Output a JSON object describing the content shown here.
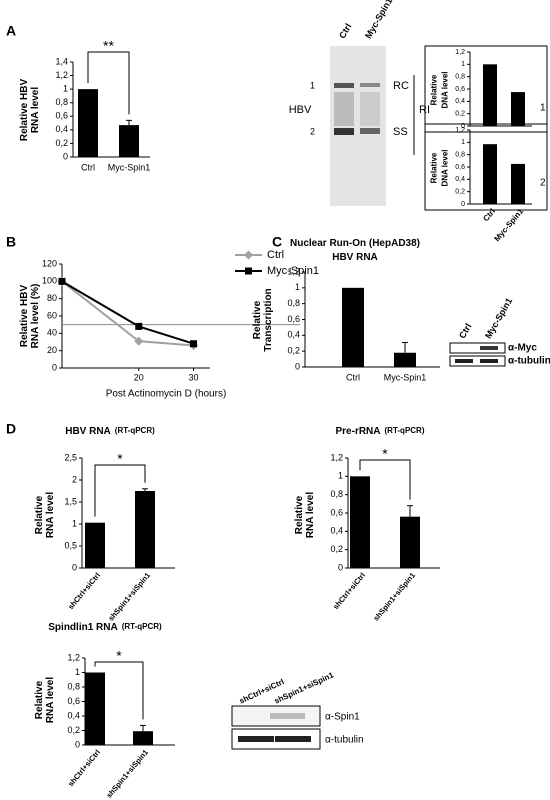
{
  "panel_labels": [
    "A",
    "B",
    "C",
    "D"
  ],
  "blots": [
    {
      "lanes": [
        "Ctrl",
        "Myc-Spin1"
      ],
      "labels": [
        "1",
        "2",
        "HBV",
        "RC",
        "RI",
        "SS"
      ]
    },
    {
      "lanes": [
        "Ctrl",
        "Myc-Spin1"
      ],
      "labels": [
        "α-Myc",
        "α-tubulin"
      ]
    },
    {
      "lanes": [
        "shCtrl+siCtrl",
        "shSpin1+siSpin1"
      ],
      "labels": [
        "α-Spin1",
        "α-tubulin"
      ]
    }
  ],
  "chart_data": [
    {
      "type": "bar",
      "ylabel": [
        "Relative HBV",
        "RNA level"
      ],
      "categories": [
        "Ctrl",
        "Myc-Spin1"
      ],
      "values": [
        1,
        0.47
      ],
      "errors": [
        null,
        0.07
      ],
      "ylim": [
        0,
        1.4
      ],
      "yticks": [
        0,
        {
          "value": 0.2,
          "label": "0,2"
        },
        {
          "value": 0.4,
          "label": "0,4"
        },
        {
          "value": 0.6,
          "label": "0,6"
        },
        {
          "value": 0.8,
          "label": "0,8"
        },
        1,
        {
          "value": 1.2,
          "label": "1,2"
        },
        {
          "value": 1.4,
          "label": "1,4"
        }
      ],
      "color": "#000000",
      "annotation": "**"
    },
    {
      "type": "bar",
      "ylabel": [
        "Relative",
        "DNA level"
      ],
      "categories": [
        null,
        null
      ],
      "values": [
        1,
        0.55
      ],
      "ylim": [
        0,
        1.2
      ],
      "yticks": [
        0,
        {
          "value": 0.2,
          "label": "0,2"
        },
        {
          "value": 0.4,
          "label": "0,4"
        },
        {
          "value": 0.6,
          "label": "0,6"
        },
        {
          "value": 0.8,
          "label": "0,8"
        },
        1,
        {
          "value": 1.2,
          "label": "1,2"
        }
      ],
      "color": "#000000",
      "annotation": "1"
    },
    {
      "type": "bar",
      "ylabel": [
        "Relative",
        "DNA level"
      ],
      "categories": [
        "Ctrl",
        "Myc-Spin1"
      ],
      "values": [
        0.97,
        0.65
      ],
      "ylim": [
        0,
        1.2
      ],
      "yticks": [
        0,
        {
          "value": 0.2,
          "label": "0,2"
        },
        {
          "value": 0.4,
          "label": "0,4"
        },
        {
          "value": 0.6,
          "label": "0,6"
        },
        {
          "value": 0.8,
          "label": "0,8"
        },
        1,
        {
          "value": 1.2,
          "label": "1,2"
        }
      ],
      "color": "#000000",
      "annotation": "2"
    },
    {
      "type": "line",
      "ylabel": [
        "Relative HBV",
        "RNA level (%)"
      ],
      "xlabel": "Post Actinomycin D (hours)",
      "x": [
        6,
        20,
        30
      ],
      "xlim": [
        6,
        33
      ],
      "xticks": [
        20,
        30
      ],
      "ylim": [
        0,
        120
      ],
      "yticks": [
        0,
        20,
        40,
        60,
        80,
        100,
        120
      ],
      "hline": 50,
      "series": [
        {
          "name": "Ctrl",
          "color": "#a0a0a0",
          "marker": "diamond",
          "values": [
            100,
            31,
            26
          ]
        },
        {
          "name": "Myc-Spin1",
          "color": "#000000",
          "marker": "square",
          "values": [
            100,
            48,
            28
          ]
        }
      ]
    },
    {
      "type": "bar",
      "title": "Nuclear Run-On (HepAD38)",
      "subtitle": "HBV RNA",
      "ylabel": [
        "Relative",
        "Transcription"
      ],
      "categories": [
        "Ctrl",
        "Myc-Spin1"
      ],
      "values": [
        1,
        0.18
      ],
      "errors": [
        null,
        0.13
      ],
      "ylim": [
        0,
        1.2
      ],
      "yticks": [
        0,
        {
          "value": 0.2,
          "label": "0,2"
        },
        {
          "value": 0.4,
          "label": "0,4"
        },
        {
          "value": 0.6,
          "label": "0,6"
        },
        {
          "value": 0.8,
          "label": "0,8"
        },
        1,
        {
          "value": 1.2,
          "label": "1,2"
        }
      ],
      "color": "#000000"
    },
    {
      "type": "bar",
      "title": "HBV RNA",
      "subtitle": "(RT-qPCR)",
      "ylabel": [
        "Relative",
        "RNA level"
      ],
      "categories": [
        "shCtrl+siCtrl",
        "shSpin1+siSpin1"
      ],
      "values": [
        1.03,
        1.75
      ],
      "errors": [
        null,
        0.05
      ],
      "ylim": [
        0,
        2.5
      ],
      "yticks": [
        0,
        {
          "value": 0.5,
          "label": "0,5"
        },
        1,
        {
          "value": 1.5,
          "label": "1,5"
        },
        2,
        {
          "value": 2.5,
          "label": "2,5"
        }
      ],
      "color": "#000000",
      "annotation": "*"
    },
    {
      "type": "bar",
      "title": "Pre-rRNA",
      "subtitle": "(RT-qPCR)",
      "ylabel": [
        "Relative",
        "RNA level"
      ],
      "categories": [
        "shCtrl+siCtrl",
        "shSpin1+siSpin1"
      ],
      "values": [
        1,
        0.56
      ],
      "errors": [
        null,
        0.12
      ],
      "ylim": [
        0,
        1.2
      ],
      "yticks": [
        0,
        {
          "value": 0.2,
          "label": "0,2"
        },
        {
          "value": 0.4,
          "label": "0,4"
        },
        {
          "value": 0.6,
          "label": "0,6"
        },
        {
          "value": 0.8,
          "label": "0,8"
        },
        1,
        {
          "value": 1.2,
          "label": "1,2"
        }
      ],
      "color": "#000000",
      "annotation": "*"
    },
    {
      "type": "bar",
      "title": "Spindlin1 RNA",
      "subtitle": "(RT-qPCR)",
      "ylabel": [
        "Relative",
        "RNA level"
      ],
      "categories": [
        "shCtrl+siCtrl",
        "shSpin1+siSpin1"
      ],
      "values": [
        1,
        0.19
      ],
      "errors": [
        null,
        0.08
      ],
      "ylim": [
        0,
        1.2
      ],
      "yticks": [
        0,
        {
          "value": 0.2,
          "label": "0,2"
        },
        {
          "value": 0.4,
          "label": "0,4"
        },
        {
          "value": 0.6,
          "label": "0,6"
        },
        {
          "value": 0.8,
          "label": "0,8"
        },
        1,
        {
          "value": 1.2,
          "label": "1,2"
        }
      ],
      "color": "#000000",
      "annotation": "*"
    }
  ]
}
